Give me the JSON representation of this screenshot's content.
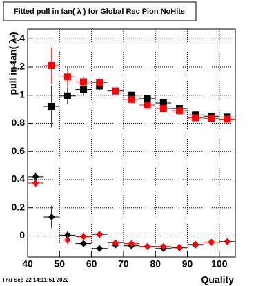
{
  "chart_data": {
    "type": "scatter",
    "title": "Fitted pull in tan( λ ) for Global Rec Pion NoHits",
    "y_label": "pull in tan( λ )",
    "x_label": "Quality",
    "timestamp": "Thu Sep 22 14:11:51 2022",
    "x": [
      42.5,
      47.5,
      52.5,
      57.5,
      62.5,
      67.5,
      72.5,
      77.5,
      82.5,
      87.5,
      92.5,
      97.5,
      102.5
    ],
    "series": [
      {
        "color": "#000000",
        "marker": "square",
        "values": [
          null,
          0.92,
          0.995,
          1.04,
          1.065,
          1.03,
          1.0,
          0.975,
          0.945,
          0.905,
          0.86,
          0.85,
          0.845
        ],
        "errors": [
          null,
          0.15,
          0.06,
          0.04,
          0.03,
          0.02,
          0.02,
          0.02,
          0.02,
          0.02,
          0.02,
          0.02,
          0.02
        ]
      },
      {
        "color": "#ff0000",
        "marker": "square",
        "values": [
          null,
          1.21,
          1.13,
          1.095,
          1.09,
          1.03,
          0.97,
          0.93,
          0.905,
          0.89,
          0.84,
          0.835,
          0.83
        ],
        "errors": [
          null,
          0.13,
          0.07,
          0.04,
          0.03,
          0.02,
          0.02,
          0.02,
          0.02,
          0.02,
          0.02,
          0.02,
          0.02
        ]
      },
      {
        "color": "#000000",
        "marker": "diamond",
        "values": [
          0.42,
          0.135,
          0.005,
          -0.055,
          -0.09,
          -0.065,
          -0.07,
          -0.075,
          -0.09,
          -0.085,
          -0.065,
          -0.045,
          -0.04
        ],
        "errors": [
          0.03,
          0.08,
          0.03,
          0.02,
          0.02,
          0.015,
          0.015,
          0.015,
          0.015,
          0.015,
          0.015,
          0.01,
          0.01
        ]
      },
      {
        "color": "#ff0000",
        "marker": "diamond",
        "values": [
          0.375,
          null,
          -0.03,
          -0.005,
          0.01,
          -0.05,
          -0.055,
          -0.075,
          -0.075,
          -0.08,
          -0.06,
          -0.045,
          -0.04
        ],
        "errors": [
          0.03,
          null,
          0.03,
          0.03,
          0.02,
          0.015,
          0.015,
          0.015,
          0.015,
          0.015,
          0.015,
          0.01,
          0.01
        ]
      }
    ],
    "xlim": [
      40,
      105
    ],
    "ylim": [
      -0.15,
      1.47
    ],
    "xticks": [
      40,
      50,
      60,
      70,
      80,
      90,
      100
    ],
    "yticks": [
      0,
      0.2,
      0.4,
      0.6,
      0.8,
      1,
      1.2,
      1.4
    ],
    "grid": true
  }
}
